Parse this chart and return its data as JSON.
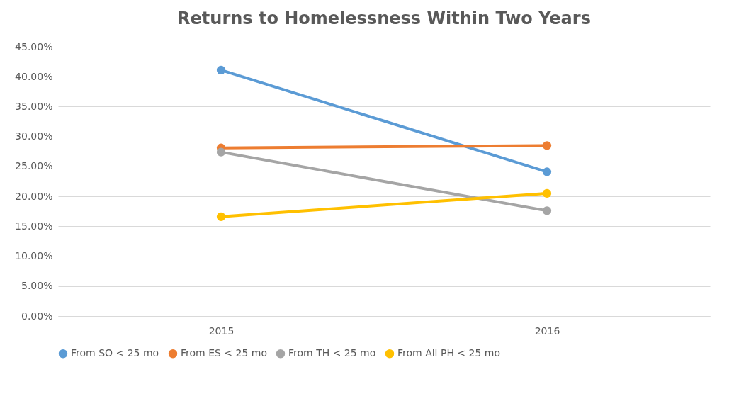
{
  "chart_data": {
    "type": "line",
    "title": "Returns to Homelessness Within Two Years",
    "categories": [
      "2015",
      "2016"
    ],
    "series": [
      {
        "name": "From SO < 25 mo",
        "color": "#5b9bd5",
        "values": [
          41.1,
          24.1
        ]
      },
      {
        "name": "From ES < 25 mo",
        "color": "#ed7d31",
        "values": [
          28.1,
          28.5
        ]
      },
      {
        "name": "From TH < 25 mo",
        "color": "#a5a5a5",
        "values": [
          27.4,
          17.6
        ]
      },
      {
        "name": "From All PH < 25 mo",
        "color": "#ffc000",
        "values": [
          16.6,
          20.5
        ]
      }
    ],
    "ylim": [
      0,
      45
    ],
    "yticks": [
      {
        "value": 0,
        "label": "0.00%"
      },
      {
        "value": 5,
        "label": "5.00%"
      },
      {
        "value": 10,
        "label": "10.00%"
      },
      {
        "value": 15,
        "label": "15.00%"
      },
      {
        "value": 20,
        "label": "20.00%"
      },
      {
        "value": 25,
        "label": "25.00%"
      },
      {
        "value": 30,
        "label": "30.00%"
      },
      {
        "value": 35,
        "label": "35.00%"
      },
      {
        "value": 40,
        "label": "40.00%"
      },
      {
        "value": 45,
        "label": "45.00%"
      }
    ],
    "grid": "y",
    "legend": "bottom",
    "marker": "circle",
    "line_style": "solid"
  }
}
